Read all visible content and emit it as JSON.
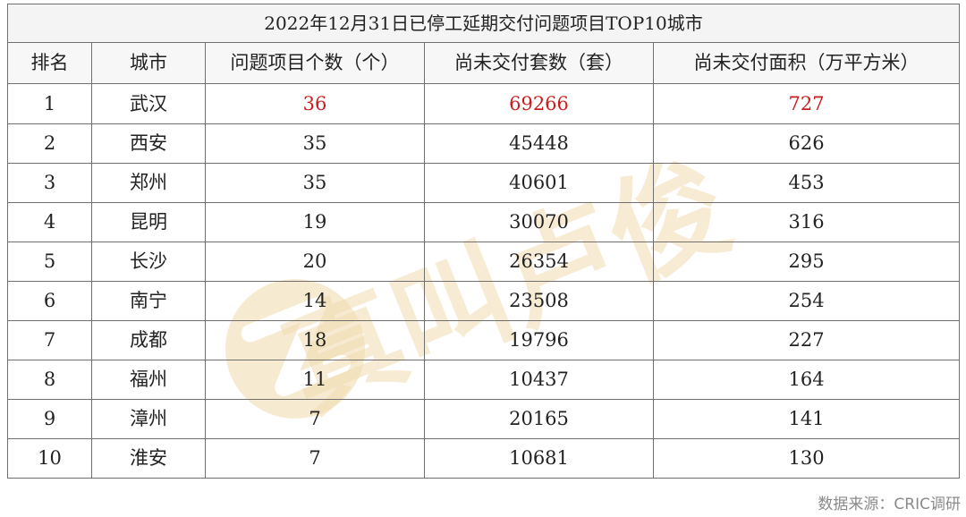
{
  "table": {
    "title": "2022年12月31日已停工延期交付问题项目TOP10城市",
    "headers": [
      "排名",
      "城市",
      "问题项目个数（个）",
      "尚未交付套数（套）",
      "尚未交付面积（万平方米）"
    ],
    "rows": [
      {
        "rank": "1",
        "city": "武汉",
        "projects": "36",
        "units": "69266",
        "area": "727",
        "highlight": true
      },
      {
        "rank": "2",
        "city": "西安",
        "projects": "35",
        "units": "45448",
        "area": "626",
        "highlight": false
      },
      {
        "rank": "3",
        "city": "郑州",
        "projects": "35",
        "units": "40601",
        "area": "453",
        "highlight": false
      },
      {
        "rank": "4",
        "city": "昆明",
        "projects": "19",
        "units": "30070",
        "area": "316",
        "highlight": false
      },
      {
        "rank": "5",
        "city": "长沙",
        "projects": "20",
        "units": "26354",
        "area": "295",
        "highlight": false
      },
      {
        "rank": "6",
        "city": "南宁",
        "projects": "14",
        "units": "23508",
        "area": "254",
        "highlight": false
      },
      {
        "rank": "7",
        "city": "成都",
        "projects": "18",
        "units": "19796",
        "area": "227",
        "highlight": false
      },
      {
        "rank": "8",
        "city": "福州",
        "projects": "11",
        "units": "10437",
        "area": "164",
        "highlight": false
      },
      {
        "rank": "9",
        "city": "漳州",
        "projects": "7",
        "units": "20165",
        "area": "141",
        "highlight": false
      },
      {
        "rank": "10",
        "city": "淮安",
        "projects": "7",
        "units": "10681",
        "area": "130",
        "highlight": false
      }
    ],
    "highlight_color": "#c81e1e"
  },
  "watermark": {
    "text": "真叫卢俊",
    "icon": "z-logo-icon",
    "color": "#f3dfb8"
  },
  "source": "数据来源：CRIC调研"
}
